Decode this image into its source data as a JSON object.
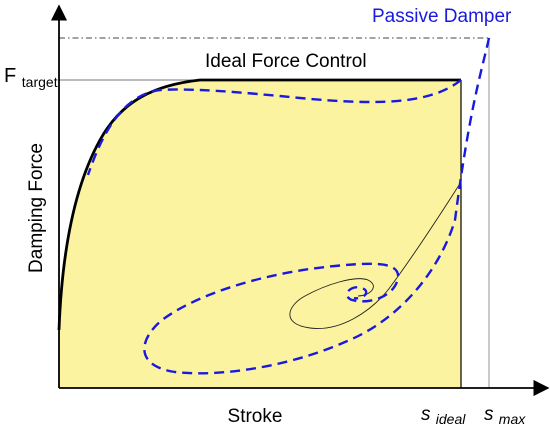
{
  "labels": {
    "passive_damper": "Passive Damper",
    "ideal_force_control": "Ideal Force Control",
    "f_target_main": "F",
    "f_target_sub": "target",
    "y_axis": "Damping Force",
    "x_axis": "Stroke",
    "s_ideal_main": "s",
    "s_ideal_sub": "ideal",
    "s_max_main": "s",
    "s_max_sub": "max"
  },
  "colors": {
    "fill": "#fbf3a0",
    "ideal_curve": "#000000",
    "passive_curve": "#1a1adf",
    "passive_label": "#1a1adf",
    "reference_line": "#777777"
  }
}
